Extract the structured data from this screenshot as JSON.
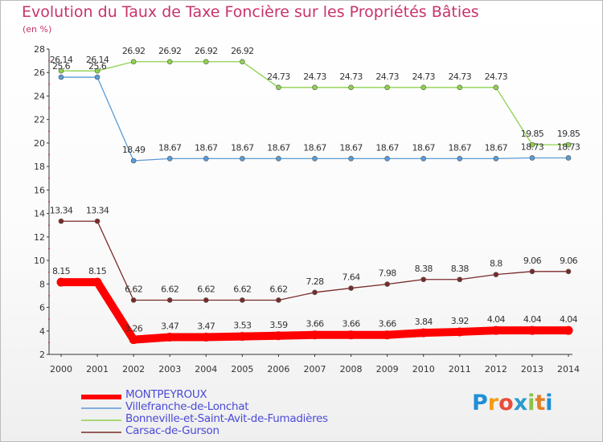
{
  "title": "Evolution du Taux de Taxe Foncière sur les Propriétés Bâties",
  "unit_label": "(en %)",
  "brand": {
    "letters": [
      "P",
      "r",
      "o",
      "x",
      "i",
      "t",
      "i"
    ],
    "colors": [
      "#1f8fd6",
      "#f39c12",
      "#e74c3c",
      "#2c9ad1",
      "#8bc34a",
      "#e67e22",
      "#1f8fd6"
    ]
  },
  "chart_data": {
    "type": "line",
    "title": "Evolution du Taux de Taxe Foncière sur les Propriétés Bâties",
    "ylabel": "(en %)",
    "xlabel": "",
    "ylim": [
      2,
      28
    ],
    "yticks": [
      2,
      4,
      6,
      8,
      10,
      12,
      14,
      16,
      18,
      20,
      22,
      24,
      26,
      28
    ],
    "categories": [
      "2000",
      "2001",
      "2002",
      "2003",
      "2004",
      "2005",
      "2006",
      "2007",
      "2008",
      "2009",
      "2010",
      "2011",
      "2012",
      "2013",
      "2014"
    ],
    "grid": false,
    "legend": "bottom-left",
    "series": [
      {
        "name": "MONTPEYROUX",
        "color": "#ff0000",
        "values": [
          8.15,
          8.15,
          3.26,
          3.47,
          3.47,
          3.53,
          3.59,
          3.66,
          3.66,
          3.66,
          3.84,
          3.92,
          4.04,
          4.04,
          4.04
        ],
        "labels": [
          "8.15",
          "8.15",
          "3.26",
          "3.47",
          "3.47",
          "3.53",
          "3.59",
          "3.66",
          "3.66",
          "3.66",
          "3.84",
          "3.92",
          "4.04",
          "4.04",
          "4.04"
        ]
      },
      {
        "name": "Villefranche-de-Lonchat",
        "color": "#5b9bd5",
        "values": [
          25.6,
          25.6,
          18.49,
          18.67,
          18.67,
          18.67,
          18.67,
          18.67,
          18.67,
          18.67,
          18.67,
          18.67,
          18.67,
          18.73,
          18.73
        ],
        "labels": [
          "25.6",
          "25.6",
          "18.49",
          "18.67",
          "18.67",
          "18.67",
          "18.67",
          "18.67",
          "18.67",
          "18.67",
          "18.67",
          "18.67",
          "18.67",
          "18.73",
          "18.73"
        ]
      },
      {
        "name": "Bonneville-et-Saint-Avit-de-Fumadières",
        "color": "#8fd14f",
        "values": [
          26.14,
          26.14,
          26.92,
          26.92,
          26.92,
          26.92,
          24.73,
          24.73,
          24.73,
          24.73,
          24.73,
          24.73,
          24.73,
          19.85,
          19.85
        ],
        "labels": [
          "26.14",
          "26.14",
          "26.92",
          "26.92",
          "26.92",
          "26.92",
          "24.73",
          "24.73",
          "24.73",
          "24.73",
          "24.73",
          "24.73",
          "24.73",
          "19.85",
          "19.85"
        ]
      },
      {
        "name": "Carsac-de-Gurson",
        "color": "#7a2a2a",
        "values": [
          13.34,
          13.34,
          6.62,
          6.62,
          6.62,
          6.62,
          6.62,
          7.28,
          7.64,
          7.98,
          8.38,
          8.38,
          8.8,
          9.06,
          9.06
        ],
        "labels": [
          "13.34",
          "13.34",
          "6.62",
          "6.62",
          "6.62",
          "6.62",
          "6.62",
          "7.28",
          "7.64",
          "7.98",
          "8.38",
          "8.38",
          "8.8",
          "9.06",
          "9.06"
        ]
      }
    ]
  }
}
